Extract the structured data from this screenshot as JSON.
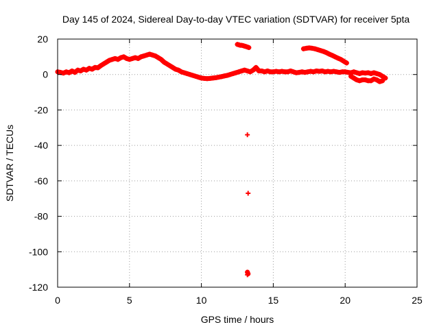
{
  "chart_data": {
    "type": "scatter",
    "title": "Day 145 of 2024, Sidereal Day-to-day VTEC variation (SDTVAR) for receiver 5pta",
    "xlabel": "GPS time / hours",
    "ylabel": "SDTVAR / TECUs",
    "xlim": [
      0,
      25
    ],
    "ylim": [
      -120,
      20
    ],
    "xticks": [
      0,
      5,
      10,
      15,
      20,
      25
    ],
    "yticks": [
      20,
      0,
      -20,
      -40,
      -60,
      -80,
      -100,
      -120
    ],
    "grid": true,
    "series_color": "#ff0000",
    "series": [
      {
        "name": "SDTVAR",
        "marker": "plus",
        "points": [
          [
            0.0,
            1.5
          ],
          [
            0.2,
            1.2
          ],
          [
            0.4,
            0.8
          ],
          [
            0.6,
            1.5
          ],
          [
            0.8,
            1.0
          ],
          [
            1.0,
            2.0
          ],
          [
            1.2,
            1.2
          ],
          [
            1.4,
            2.5
          ],
          [
            1.6,
            2.0
          ],
          [
            1.8,
            3.0
          ],
          [
            2.0,
            2.5
          ],
          [
            2.2,
            3.5
          ],
          [
            2.4,
            3.0
          ],
          [
            2.6,
            4.0
          ],
          [
            2.8,
            3.8
          ],
          [
            3.0,
            5.0
          ],
          [
            3.2,
            6.0
          ],
          [
            3.4,
            7.0
          ],
          [
            3.6,
            8.0
          ],
          [
            3.8,
            8.5
          ],
          [
            4.0,
            9.0
          ],
          [
            4.2,
            8.5
          ],
          [
            4.4,
            9.5
          ],
          [
            4.6,
            10.0
          ],
          [
            4.8,
            9.0
          ],
          [
            5.0,
            8.5
          ],
          [
            5.2,
            9.0
          ],
          [
            5.4,
            9.5
          ],
          [
            5.6,
            9.0
          ],
          [
            5.8,
            10.0
          ],
          [
            6.0,
            10.5
          ],
          [
            6.2,
            11.0
          ],
          [
            6.4,
            11.5
          ],
          [
            6.6,
            11.0
          ],
          [
            6.8,
            10.5
          ],
          [
            7.0,
            9.5
          ],
          [
            7.2,
            8.5
          ],
          [
            7.4,
            7.0
          ],
          [
            7.6,
            6.0
          ],
          [
            7.8,
            5.0
          ],
          [
            8.0,
            4.0
          ],
          [
            8.2,
            3.0
          ],
          [
            8.4,
            2.5
          ],
          [
            8.6,
            1.5
          ],
          [
            8.8,
            1.0
          ],
          [
            9.0,
            0.5
          ],
          [
            9.2,
            0.0
          ],
          [
            9.4,
            -0.5
          ],
          [
            9.6,
            -1.0
          ],
          [
            9.8,
            -1.5
          ],
          [
            10.0,
            -2.0
          ],
          [
            10.2,
            -2.2
          ],
          [
            10.4,
            -2.3
          ],
          [
            10.6,
            -2.2
          ],
          [
            10.8,
            -2.0
          ],
          [
            11.0,
            -1.8
          ],
          [
            11.2,
            -1.5
          ],
          [
            11.4,
            -1.2
          ],
          [
            11.6,
            -0.8
          ],
          [
            11.8,
            -0.5
          ],
          [
            12.0,
            0.0
          ],
          [
            12.2,
            0.5
          ],
          [
            12.4,
            1.0
          ],
          [
            12.6,
            1.5
          ],
          [
            12.8,
            2.0
          ],
          [
            13.0,
            2.5
          ],
          [
            13.2,
            2.0
          ],
          [
            13.4,
            1.5
          ],
          [
            13.6,
            2.5
          ],
          [
            13.8,
            4.0
          ],
          [
            14.0,
            2.0
          ],
          [
            14.2,
            2.0
          ],
          [
            14.4,
            1.5
          ],
          [
            14.6,
            2.0
          ],
          [
            14.8,
            1.5
          ],
          [
            15.0,
            1.5
          ],
          [
            15.2,
            1.8
          ],
          [
            15.4,
            1.5
          ],
          [
            15.6,
            1.8
          ],
          [
            15.8,
            1.5
          ],
          [
            16.0,
            1.5
          ],
          [
            16.2,
            2.0
          ],
          [
            16.4,
            1.5
          ],
          [
            16.6,
            1.0
          ],
          [
            16.8,
            1.2
          ],
          [
            17.0,
            1.5
          ],
          [
            17.2,
            1.2
          ],
          [
            17.4,
            1.5
          ],
          [
            17.6,
            1.8
          ],
          [
            17.8,
            1.5
          ],
          [
            18.0,
            2.0
          ],
          [
            18.2,
            1.8
          ],
          [
            18.4,
            2.0
          ],
          [
            18.6,
            1.5
          ],
          [
            18.8,
            1.8
          ],
          [
            19.0,
            1.5
          ],
          [
            19.2,
            1.8
          ],
          [
            19.4,
            1.5
          ],
          [
            19.6,
            1.2
          ],
          [
            19.8,
            1.5
          ],
          [
            20.0,
            1.5
          ],
          [
            20.2,
            1.2
          ],
          [
            20.4,
            1.0
          ],
          [
            20.6,
            1.5
          ],
          [
            20.8,
            1.0
          ],
          [
            21.0,
            0.5
          ],
          [
            21.2,
            1.0
          ],
          [
            21.4,
            0.8
          ],
          [
            21.6,
            1.0
          ],
          [
            21.8,
            0.5
          ],
          [
            22.0,
            1.0
          ],
          [
            22.2,
            0.5
          ],
          [
            22.4,
            0.0
          ],
          [
            22.6,
            -1.0
          ],
          [
            22.8,
            -2.0
          ],
          [
            20.4,
            -1.0
          ],
          [
            20.6,
            -2.0
          ],
          [
            20.8,
            -3.0
          ],
          [
            21.0,
            -3.5
          ],
          [
            21.2,
            -3.0
          ],
          [
            21.4,
            -3.0
          ],
          [
            21.6,
            -3.5
          ],
          [
            21.8,
            -3.5
          ],
          [
            22.0,
            -2.5
          ],
          [
            22.2,
            -3.0
          ],
          [
            22.4,
            -4.0
          ],
          [
            22.6,
            -3.5
          ],
          [
            12.5,
            17.0
          ],
          [
            12.6,
            16.8
          ],
          [
            12.7,
            16.5
          ],
          [
            12.8,
            16.5
          ],
          [
            12.9,
            16.3
          ],
          [
            13.0,
            16.0
          ],
          [
            13.1,
            15.8
          ],
          [
            13.2,
            15.5
          ],
          [
            13.3,
            15.2
          ],
          [
            17.1,
            14.5
          ],
          [
            17.3,
            14.8
          ],
          [
            17.5,
            15.0
          ],
          [
            17.7,
            14.8
          ],
          [
            17.9,
            14.5
          ],
          [
            18.1,
            14.0
          ],
          [
            18.3,
            13.5
          ],
          [
            18.5,
            13.0
          ],
          [
            18.7,
            12.3
          ],
          [
            18.9,
            11.5
          ],
          [
            19.1,
            10.8
          ],
          [
            19.3,
            10.0
          ],
          [
            19.5,
            9.2
          ],
          [
            19.7,
            8.5
          ],
          [
            19.9,
            7.5
          ],
          [
            20.1,
            6.5
          ],
          [
            13.2,
            -34
          ],
          [
            13.25,
            -67
          ],
          [
            13.2,
            -111.5
          ],
          [
            13.25,
            -112.5
          ],
          [
            13.2,
            -113
          ]
        ]
      }
    ]
  }
}
